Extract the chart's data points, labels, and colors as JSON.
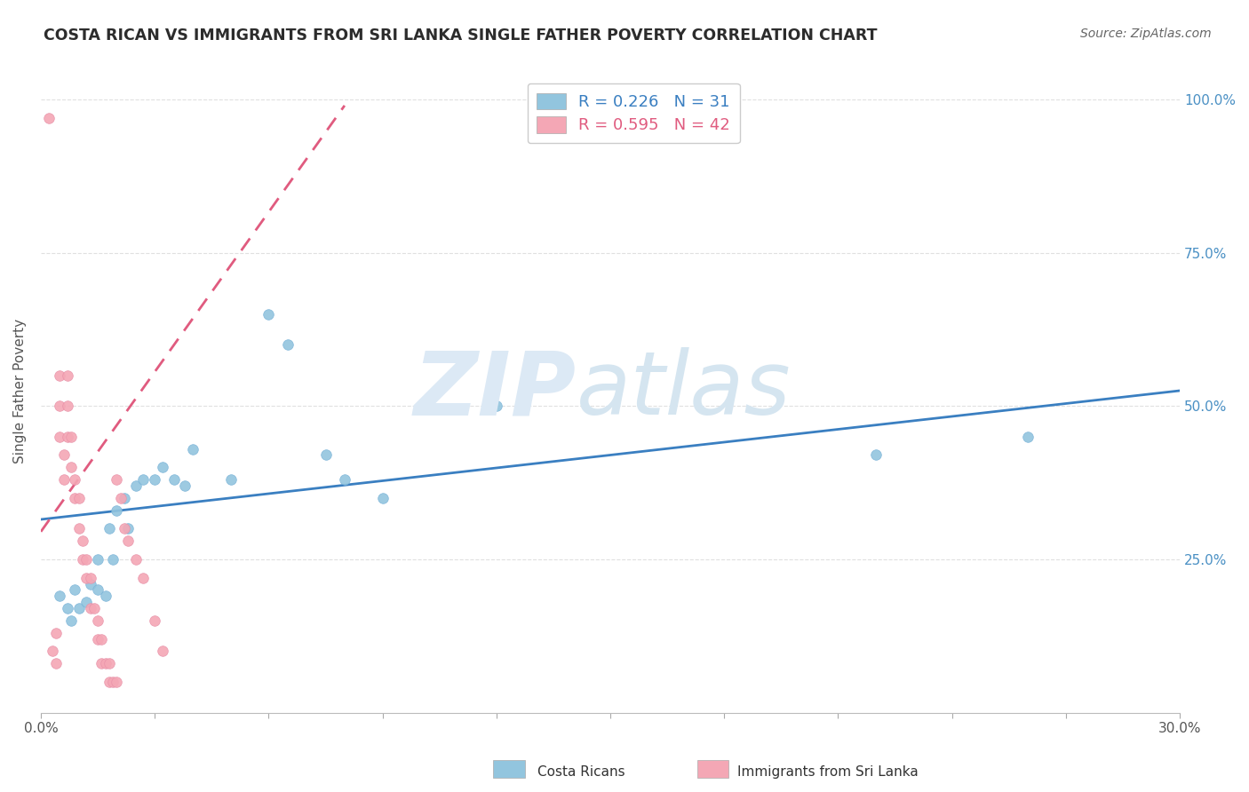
{
  "title": "COSTA RICAN VS IMMIGRANTS FROM SRI LANKA SINGLE FATHER POVERTY CORRELATION CHART",
  "source": "Source: ZipAtlas.com",
  "ylabel": "Single Father Poverty",
  "xlim": [
    0.0,
    0.3
  ],
  "ylim": [
    0.0,
    1.05
  ],
  "legend_blue_r": "0.226",
  "legend_blue_n": "31",
  "legend_pink_r": "0.595",
  "legend_pink_n": "42",
  "blue_scatter_color": "#92c5de",
  "pink_scatter_color": "#f4a7b5",
  "trendline_blue_color": "#3a7fc1",
  "trendline_pink_color": "#e05b7f",
  "costa_rican_x": [
    0.005,
    0.007,
    0.008,
    0.009,
    0.01,
    0.012,
    0.013,
    0.015,
    0.015,
    0.017,
    0.018,
    0.019,
    0.02,
    0.022,
    0.023,
    0.025,
    0.027,
    0.03,
    0.032,
    0.035,
    0.038,
    0.04,
    0.05,
    0.06,
    0.065,
    0.075,
    0.08,
    0.09,
    0.12,
    0.22,
    0.26
  ],
  "costa_rican_y": [
    0.19,
    0.17,
    0.15,
    0.2,
    0.17,
    0.18,
    0.21,
    0.25,
    0.2,
    0.19,
    0.3,
    0.25,
    0.33,
    0.35,
    0.3,
    0.37,
    0.38,
    0.38,
    0.4,
    0.38,
    0.37,
    0.43,
    0.38,
    0.65,
    0.6,
    0.42,
    0.38,
    0.35,
    0.5,
    0.42,
    0.45
  ],
  "sri_lanka_x": [
    0.002,
    0.003,
    0.004,
    0.004,
    0.005,
    0.005,
    0.005,
    0.006,
    0.006,
    0.007,
    0.007,
    0.007,
    0.008,
    0.008,
    0.009,
    0.009,
    0.01,
    0.01,
    0.011,
    0.011,
    0.012,
    0.012,
    0.013,
    0.013,
    0.014,
    0.015,
    0.015,
    0.016,
    0.016,
    0.017,
    0.018,
    0.018,
    0.019,
    0.02,
    0.02,
    0.021,
    0.022,
    0.023,
    0.025,
    0.027,
    0.03,
    0.032
  ],
  "sri_lanka_y": [
    0.97,
    0.1,
    0.13,
    0.08,
    0.55,
    0.5,
    0.45,
    0.42,
    0.38,
    0.55,
    0.5,
    0.45,
    0.45,
    0.4,
    0.38,
    0.35,
    0.35,
    0.3,
    0.28,
    0.25,
    0.25,
    0.22,
    0.22,
    0.17,
    0.17,
    0.15,
    0.12,
    0.12,
    0.08,
    0.08,
    0.08,
    0.05,
    0.05,
    0.05,
    0.38,
    0.35,
    0.3,
    0.28,
    0.25,
    0.22,
    0.15,
    0.1
  ],
  "blue_trend_x": [
    0.0,
    0.3
  ],
  "blue_trend_y": [
    0.315,
    0.525
  ],
  "pink_trend_x": [
    0.0,
    0.08
  ],
  "pink_trend_y": [
    0.295,
    0.99
  ],
  "pink_trend_dashes": [
    6,
    4
  ],
  "background_color": "#ffffff",
  "grid_color": "#e0e0e0",
  "right_axis_color": "#4a90c4",
  "title_color": "#2c2c2c",
  "source_color": "#666666",
  "ylabel_color": "#555555",
  "xtick_color": "#555555",
  "legend_font_size": 13,
  "watermark_zip_color": "#dce9f5",
  "watermark_atlas_color": "#d5e5f0"
}
